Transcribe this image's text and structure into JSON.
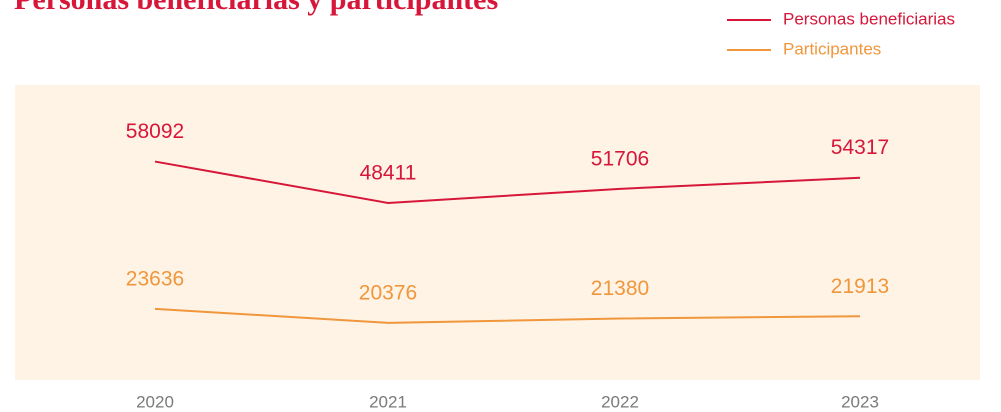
{
  "chart_data": {
    "type": "line",
    "title": "Personas beneficiarias y participantes",
    "x": [
      "2020",
      "2021",
      "2022",
      "2023"
    ],
    "series": [
      {
        "name": "Personas beneficiarias",
        "color": "#d6173a",
        "values": [
          58092,
          48411,
          51706,
          54317
        ]
      },
      {
        "name": "Participantes",
        "color": "#f0963c",
        "values": [
          23636,
          20376,
          21380,
          21913
        ]
      }
    ],
    "ylim": [
      7000,
      76000
    ],
    "background": "#fef3e5",
    "legend": "top-right"
  }
}
